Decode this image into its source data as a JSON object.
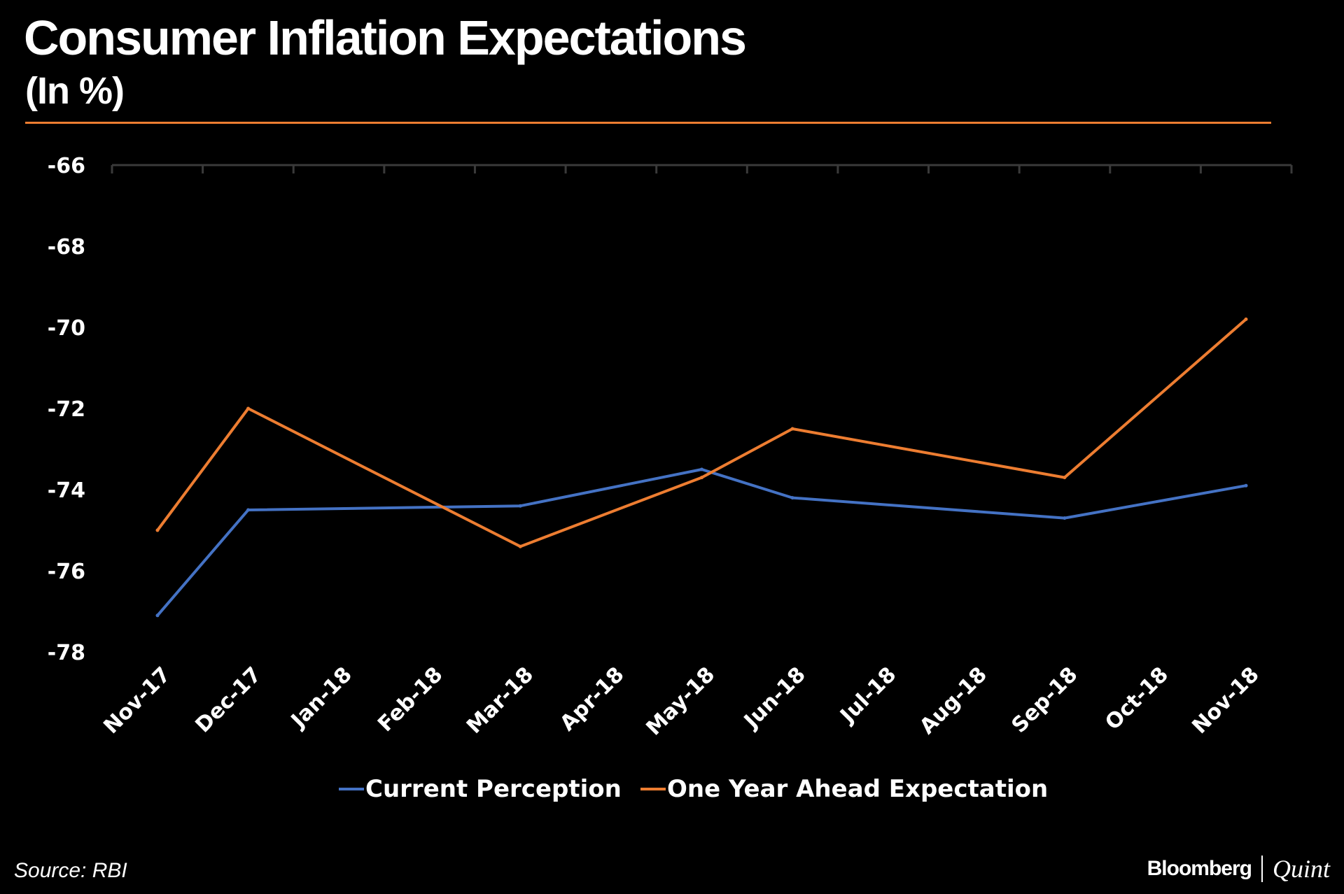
{
  "header": {
    "title": "Consumer Inflation Expectations",
    "subtitle": "(In %)"
  },
  "footer": {
    "source": "Source: RBI",
    "brand_primary": "Bloomberg",
    "brand_secondary": "Quint"
  },
  "colors": {
    "background": "#000000",
    "accent": "#ED7D31",
    "current": "#4472C4",
    "ahead": "#ED7D31",
    "text": "#FFFFFF"
  },
  "chart_data": {
    "type": "line",
    "title": "Consumer Inflation Expectations",
    "subtitle": "(In %)",
    "xlabel": "",
    "ylabel": "",
    "categories": [
      "Nov-17",
      "Dec-17",
      "Jan-18",
      "Feb-18",
      "Mar-18",
      "Apr-18",
      "May-18",
      "Jun-18",
      "Jul-18",
      "Aug-18",
      "Sep-18",
      "Oct-18",
      "Nov-18"
    ],
    "ylim": [
      -78,
      -66
    ],
    "yticks": [
      -66,
      -68,
      -70,
      -72,
      -74,
      -76,
      -78
    ],
    "ytick_labels": [
      "-66",
      "-68",
      "-70",
      "-72",
      "-74",
      "-76",
      "-78"
    ],
    "grid": false,
    "legend_position": "bottom",
    "series": [
      {
        "name": "Current Perception",
        "color": "#4472C4",
        "x": [
          "Nov-17",
          "Dec-17",
          "Mar-18",
          "May-18",
          "Jun-18",
          "Sep-18",
          "Nov-18"
        ],
        "values": [
          -77.1,
          -74.5,
          -74.4,
          -73.5,
          -74.2,
          -74.7,
          -73.9
        ]
      },
      {
        "name": "One Year Ahead Expectation",
        "color": "#ED7D31",
        "x": [
          "Nov-17",
          "Dec-17",
          "Mar-18",
          "May-18",
          "Jun-18",
          "Sep-18",
          "Nov-18"
        ],
        "values": [
          -75.0,
          -72.0,
          -75.4,
          -73.7,
          -72.5,
          -73.7,
          -69.8
        ]
      }
    ]
  }
}
